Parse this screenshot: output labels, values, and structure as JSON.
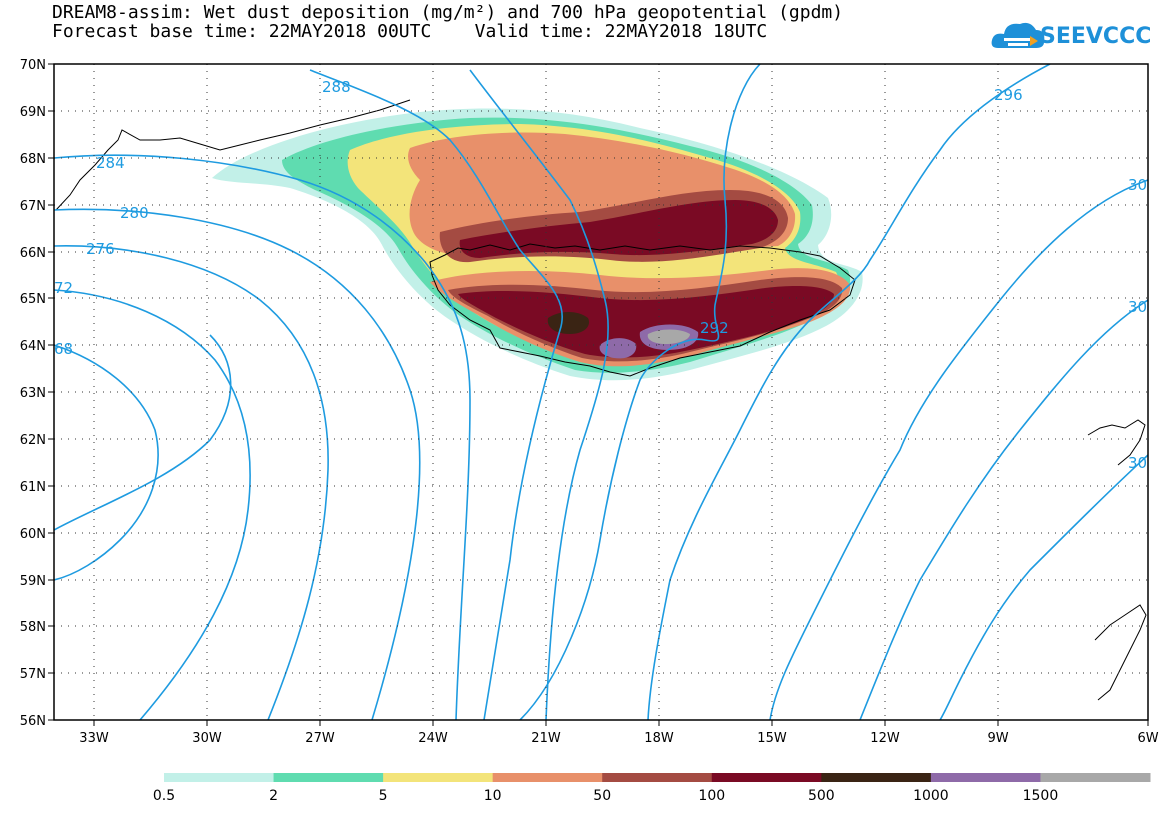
{
  "header": {
    "title_line1": "DREAM8-assim: Wet dust deposition (mg/m²) and 700 hPa geopotential (gpdm)",
    "title_line2": "Forecast base time: 22MAY2018 00UTC    Valid time: 22MAY2018 18UTC"
  },
  "logo": {
    "text": "SEEVCCC",
    "icon": "cloud-icon"
  },
  "map": {
    "lat_labels": [
      "70N",
      "69N",
      "68N",
      "67N",
      "66N",
      "65N",
      "64N",
      "63N",
      "62N",
      "61N",
      "60N",
      "59N",
      "58N",
      "57N",
      "56N"
    ],
    "lon_labels": [
      "33W",
      "30W",
      "27W",
      "24W",
      "21W",
      "18W",
      "15W",
      "12W",
      "9W",
      "6W"
    ],
    "lat_range": [
      56,
      70
    ],
    "lon_range": [
      -34.5,
      -6
    ],
    "gridlines": "dotted",
    "contour_color": "#1e9be0",
    "contour_labels": [
      "288",
      "284",
      "280",
      "276",
      "72",
      "68",
      "292",
      "296",
      "30",
      "30",
      "30"
    ]
  },
  "legend": {
    "thresholds": [
      "0.5",
      "2",
      "5",
      "10",
      "50",
      "100",
      "500",
      "1000",
      "1500"
    ],
    "colors": [
      "#c2f0e8",
      "#5fdcb0",
      "#f3e47a",
      "#e8906a",
      "#a44b42",
      "#7a0a24",
      "#3a2414",
      "#8e6aa8",
      "#a8a8a8"
    ]
  }
}
